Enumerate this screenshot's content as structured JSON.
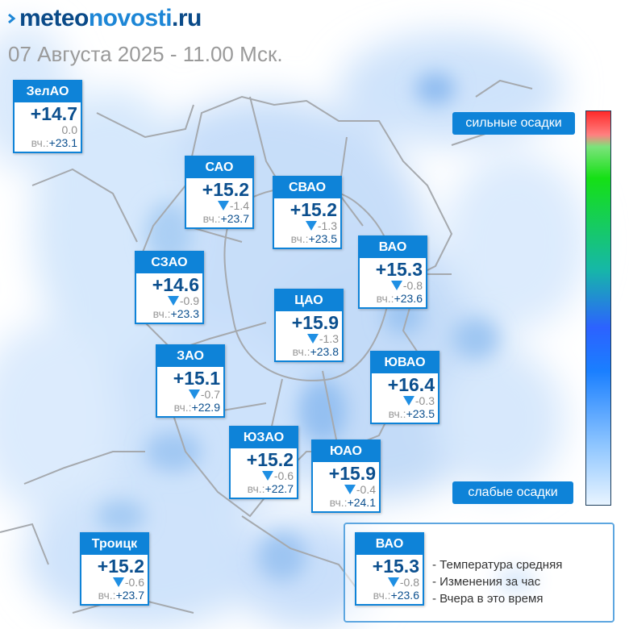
{
  "header": {
    "brand_a": "meteo",
    "brand_b": "novosti",
    "brand_c": ".ru",
    "datetime": "07 Августа 2025 - 11.00 Мск."
  },
  "districts": [
    {
      "name": "ЗелАО",
      "temp": "+14.7",
      "change": "0.0",
      "change_dir": "none",
      "yesterday_label": "вч.:",
      "yesterday": "+23.1"
    },
    {
      "name": "САО",
      "temp": "+15.2",
      "change": "-1.4",
      "change_dir": "down",
      "yesterday_label": "вч.:",
      "yesterday": "+23.7"
    },
    {
      "name": "СВАО",
      "temp": "+15.2",
      "change": "-1.3",
      "change_dir": "down",
      "yesterday_label": "вч.:",
      "yesterday": "+23.5"
    },
    {
      "name": "ВАО",
      "temp": "+15.3",
      "change": "-0.8",
      "change_dir": "down",
      "yesterday_label": "вч.:",
      "yesterday": "+23.6"
    },
    {
      "name": "СЗАО",
      "temp": "+14.6",
      "change": "-0.9",
      "change_dir": "down",
      "yesterday_label": "вч.:",
      "yesterday": "+23.3"
    },
    {
      "name": "ЦАО",
      "temp": "+15.9",
      "change": "-1.3",
      "change_dir": "down",
      "yesterday_label": "вч.:",
      "yesterday": "+23.8"
    },
    {
      "name": "ЗАО",
      "temp": "+15.1",
      "change": "-0.7",
      "change_dir": "down",
      "yesterday_label": "вч.:",
      "yesterday": "+22.9"
    },
    {
      "name": "ЮВАО",
      "temp": "+16.4",
      "change": "-0.3",
      "change_dir": "down",
      "yesterday_label": "вч.:",
      "yesterday": "+23.5"
    },
    {
      "name": "ЮЗАО",
      "temp": "+15.2",
      "change": "-0.6",
      "change_dir": "down",
      "yesterday_label": "вч.:",
      "yesterday": "+22.7"
    },
    {
      "name": "ЮАО",
      "temp": "+15.9",
      "change": "-0.4",
      "change_dir": "down",
      "yesterday_label": "вч.:",
      "yesterday": "+24.1"
    },
    {
      "name": "Троицк",
      "temp": "+15.2",
      "change": "-0.6",
      "change_dir": "down",
      "yesterday_label": "вч.:",
      "yesterday": "+23.7"
    }
  ],
  "precip_scale": {
    "top_label": "сильные осадки",
    "bottom_label": "слабые осадки"
  },
  "legend": {
    "example": {
      "name": "ВАО",
      "temp": "+15.3",
      "change": "-0.8",
      "change_dir": "down",
      "yesterday_label": "вч.:",
      "yesterday": "+23.6"
    },
    "lines": [
      "- Температура средняя",
      "- Изменения за час",
      "- Вчера в это время"
    ]
  },
  "colors": {
    "accent": "#0e83d8",
    "brand_dark": "#0a4a88",
    "brand_light": "#1d86d6",
    "temp_text": "#0b4f8e",
    "change_arrow": "#1f8fe3"
  }
}
